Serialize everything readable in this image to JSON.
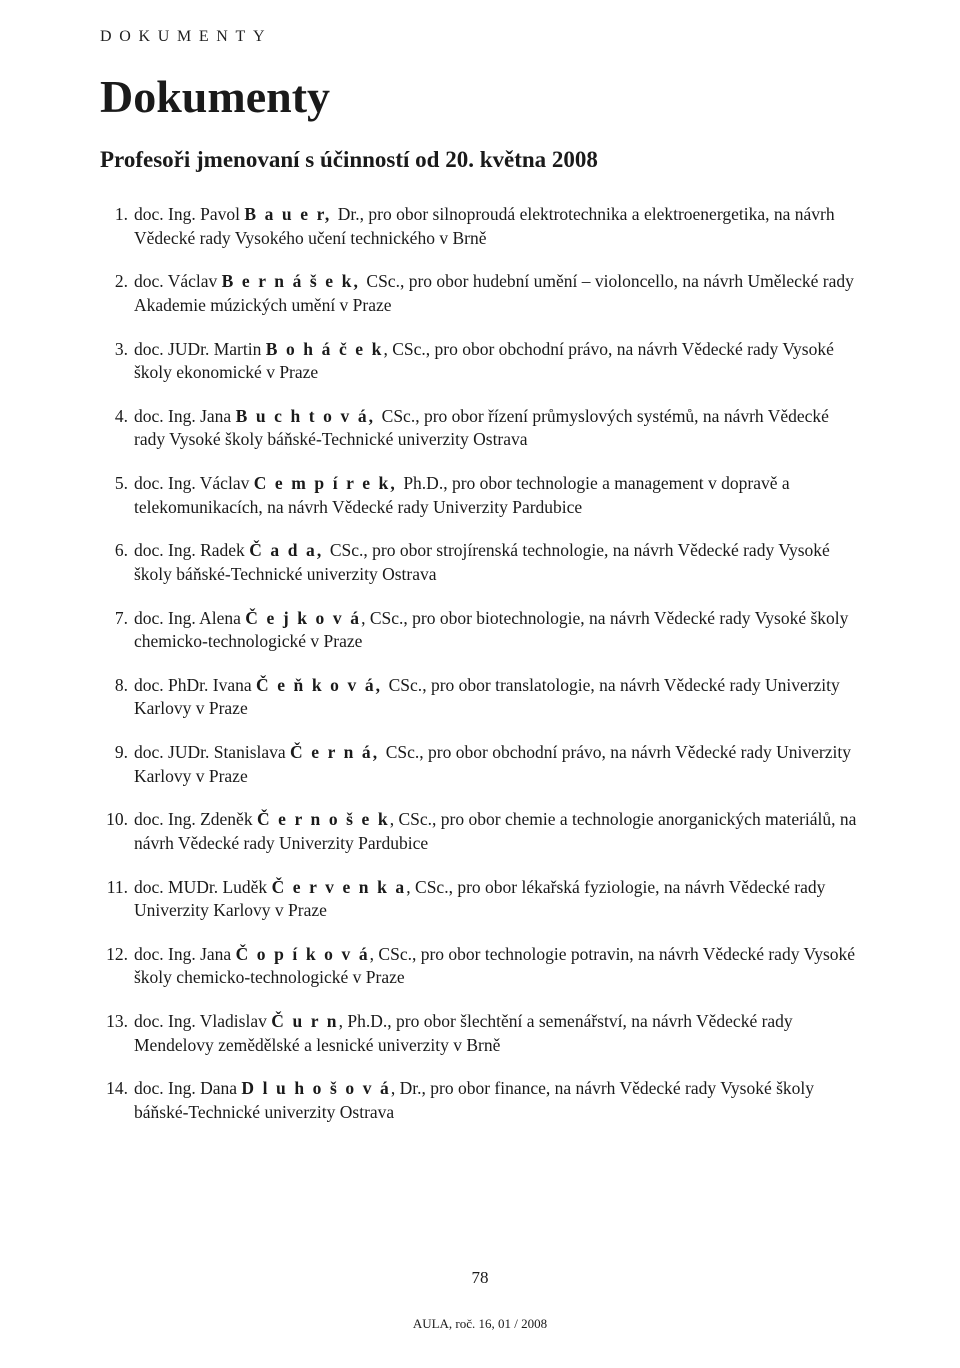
{
  "section_header": "DOKUMENTY",
  "title": "Dokumenty",
  "subtitle": "Profesoři jmenovaní s účinností od 20. května 2008",
  "page_number": "78",
  "footer_text": "AULA, roč. 16, 01 / 2008",
  "items": [
    {
      "prefix": "doc. Ing. Pavol ",
      "name": "B a u e r, ",
      "title_suffix": "Dr.",
      "desc": ", pro obor silnoproudá elektrotechnika a elektroenergetika, na návrh Vědecké rady Vysokého učení technického v Brně"
    },
    {
      "prefix": "doc. Václav ",
      "name": "B e r n á š e k, ",
      "title_suffix": "CSc.",
      "desc": ", pro obor hudební umění – violoncello, na návrh Umělecké rady Akademie múzických umění v Praze"
    },
    {
      "prefix": "doc. JUDr. Martin ",
      "name": "B o h á č e k",
      "title_suffix": ", CSc.",
      "desc": ", pro obor obchodní právo, na návrh Vědecké rady Vysoké školy ekonomické v Praze"
    },
    {
      "prefix": "doc. Ing. Jana ",
      "name": "B u c h t o v á, ",
      "title_suffix": "CSc.",
      "desc": ", pro obor řízení průmyslových systémů, na návrh Vědecké rady Vysoké školy báňské-Technické univerzity Ostrava"
    },
    {
      "prefix": "doc. Ing. Václav ",
      "name": "C e m p í r e k, ",
      "title_suffix": "Ph.D.",
      "desc": ", pro obor technologie a management v dopravě a telekomunikacích, na návrh Vědecké rady Univerzity Pardubice"
    },
    {
      "prefix": "doc. Ing. Radek ",
      "name": "Č a d a, ",
      "title_suffix": "CSc.",
      "desc": ", pro obor strojírenská technologie, na návrh Vědecké rady Vysoké školy báňské-Technické univerzity Ostrava"
    },
    {
      "prefix": "doc. Ing. Alena ",
      "name": "Č e j k o v á",
      "title_suffix": ", CSc.",
      "desc": ", pro obor biotechnologie, na návrh Vědecké rady Vysoké školy chemicko-technologické v Praze"
    },
    {
      "prefix": "doc. PhDr. Ivana ",
      "name": "Č e ň k o v á, ",
      "title_suffix": "CSc.",
      "desc": ", pro obor translatologie, na návrh Vědecké rady Univerzity Karlovy v Praze"
    },
    {
      "prefix": "doc. JUDr. Stanislava ",
      "name": "Č e r n á, ",
      "title_suffix": "CSc.",
      "desc": ", pro obor obchodní právo, na návrh Vědecké rady Univerzity Karlovy v Praze"
    },
    {
      "prefix": "doc. Ing. Zdeněk ",
      "name": "Č e r n o š e k",
      "title_suffix": ", CSc.",
      "desc": ", pro obor chemie a technologie anorganických materiálů, na návrh Vědecké rady Univerzity Pardubice"
    },
    {
      "prefix": "doc. MUDr. Luděk ",
      "name": "Č e r v e n k a",
      "title_suffix": ", CSc.",
      "desc": ", pro obor lékařská fyziologie, na návrh Vědecké rady Univerzity Karlovy v Praze"
    },
    {
      "prefix": "doc. Ing. Jana ",
      "name": "Č o p í k o v á",
      "title_suffix": ", CSc.",
      "desc": ", pro obor technologie potravin, na návrh Vědecké rady Vysoké školy chemicko-technologické v Praze"
    },
    {
      "prefix": "doc. Ing. Vladislav ",
      "name": "Č u r n",
      "title_suffix": ", Ph.D.",
      "desc": ", pro obor šlechtění a semenářství, na návrh Vědecké rady Mendelovy zemědělské a lesnické univerzity v Brně"
    },
    {
      "prefix": "doc. Ing. Dana ",
      "name": "D l u h o š o v á",
      "title_suffix": ", Dr.",
      "desc": ", pro obor finance, na návrh Vědecké rady Vysoké školy báňské-Technické univerzity Ostrava"
    }
  ]
}
